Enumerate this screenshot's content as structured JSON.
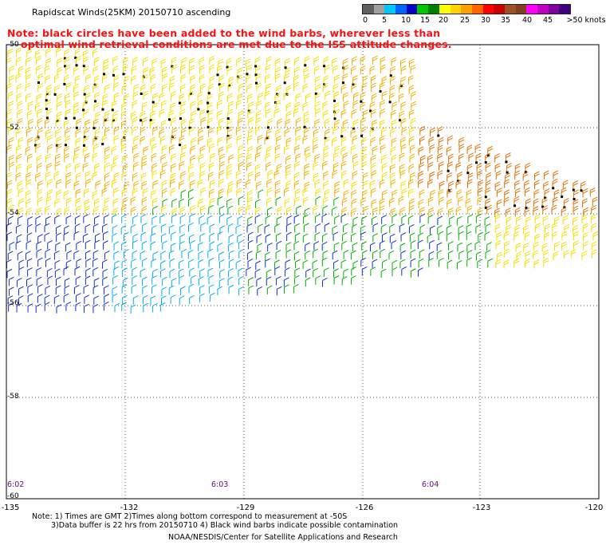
{
  "header": {
    "title": "Rapidscat Winds(25KM) 20150710 ascending",
    "note_line1": "Note: black circles have been added to the wind barbs, wherever less than",
    "note_line2": "optimal wind retrieval conditions are met due to the ISS attitude changes."
  },
  "scale": {
    "labels": [
      "0",
      "5",
      "10",
      "15",
      "20",
      "25",
      "30",
      "35",
      "40",
      "45",
      ">50 knots"
    ],
    "colors": [
      "#606060",
      "#a0a0a0",
      "#00c8ff",
      "#0064ff",
      "#0000c8",
      "#00c800",
      "#008000",
      "#ffff00",
      "#ffd200",
      "#ffa000",
      "#ff6400",
      "#ff0000",
      "#c80000",
      "#a05028",
      "#804020",
      "#ff00ff",
      "#c000c0",
      "#8000a0",
      "#400080"
    ]
  },
  "axes": {
    "lat_labels": [
      "-50",
      "-52",
      "-54",
      "-56",
      "-58",
      "-60"
    ],
    "lon_labels": [
      "-135",
      "-132",
      "-129",
      "-126",
      "-123",
      "-120"
    ],
    "time_labels": [
      "6:02",
      "6:03",
      "6:04"
    ]
  },
  "footer": {
    "line1": "Note: 1) Times are GMT 2)Times along bottom correspond to measurement at -50S",
    "line2": "3)Data buffer is 22 hrs from 20150710 4) Black wind barbs indicate possible contamination",
    "credit": "NOAA/NESDIS/Center for Satellite Applications and Research"
  },
  "map": {
    "grid_style": "dotted",
    "barb_color_legend": {
      "blue": "#1030d0",
      "sky": "#00b0f0",
      "green": "#00b000",
      "dark_green": "#007000",
      "yellow": "#f4e000",
      "gold": "#f0b000",
      "orange": "#e07000",
      "red_orange": "#d05000",
      "flag": "#000000"
    }
  }
}
